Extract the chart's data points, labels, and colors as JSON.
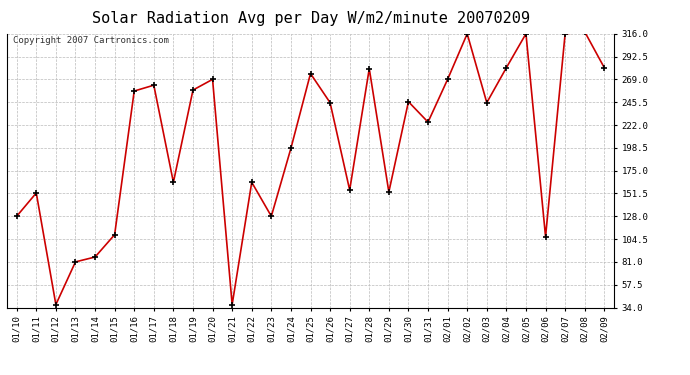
{
  "title": "Solar Radiation Avg per Day W/m2/minute 20070209",
  "copyright_text": "Copyright 2007 Cartronics.com",
  "dates": [
    "01/10",
    "01/11",
    "01/12",
    "01/13",
    "01/14",
    "01/15",
    "01/16",
    "01/17",
    "01/18",
    "01/19",
    "01/20",
    "01/21",
    "01/22",
    "01/23",
    "01/24",
    "01/25",
    "01/26",
    "01/27",
    "01/28",
    "01/29",
    "01/30",
    "01/31",
    "02/01",
    "02/02",
    "02/03",
    "02/04",
    "02/05",
    "02/06",
    "02/07",
    "02/08",
    "02/09"
  ],
  "values": [
    128,
    152,
    37,
    81,
    86,
    109,
    257,
    263,
    163,
    258,
    269,
    37,
    163,
    128,
    198,
    275,
    245,
    155,
    280,
    153,
    246,
    225,
    269,
    316,
    245,
    281,
    316,
    107,
    316,
    318,
    281
  ],
  "line_color": "#cc0000",
  "marker_color": "#000000",
  "ylim": [
    34.0,
    316.0
  ],
  "yticks": [
    34.0,
    57.5,
    81.0,
    104.5,
    128.0,
    151.5,
    175.0,
    198.5,
    222.0,
    245.5,
    269.0,
    292.5,
    316.0
  ],
  "bg_color": "#ffffff",
  "plot_bg_color": "#ffffff",
  "grid_color": "#bbbbbb",
  "title_fontsize": 11,
  "copyright_fontsize": 6.5,
  "tick_fontsize": 6.5
}
